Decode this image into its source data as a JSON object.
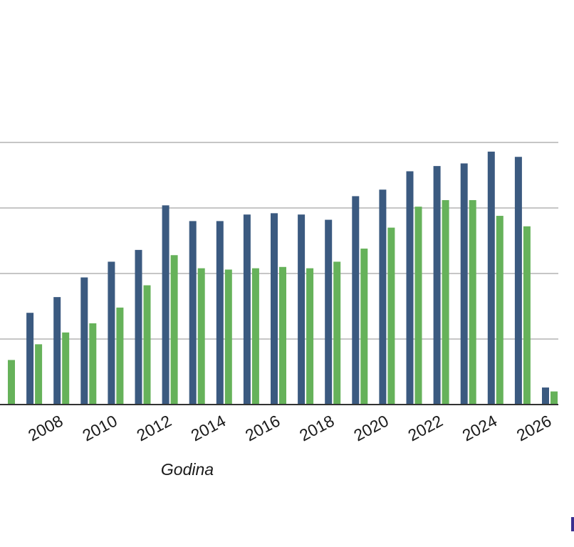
{
  "chart_data": {
    "type": "bar",
    "xlabel": "Godina",
    "ylabel": "",
    "title": "",
    "categories": [
      "2006",
      "2007",
      "2008",
      "2009",
      "2010",
      "2011",
      "2012",
      "2013",
      "2014",
      "2015",
      "2016",
      "2017",
      "2018",
      "2019",
      "2020",
      "2021",
      "2022",
      "2023",
      "2024",
      "2025",
      "2026"
    ],
    "tick_labels": [
      "2008",
      "2010",
      "2012",
      "2014",
      "2016",
      "2018",
      "2020",
      "2022",
      "2024",
      "2026"
    ],
    "series": [
      {
        "values": [
          null,
          140,
          164,
          194,
          218,
          236,
          304,
          280,
          280,
          290,
          292,
          290,
          282,
          318,
          328,
          356,
          364,
          368,
          386,
          378,
          26
        ]
      },
      {
        "values": [
          68,
          92,
          110,
          124,
          148,
          182,
          228,
          208,
          206,
          208,
          210,
          208,
          218,
          238,
          270,
          302,
          312,
          312,
          288,
          272,
          20
        ]
      }
    ],
    "ylim": [
      0,
      400
    ],
    "gridlines": [
      100,
      200,
      300,
      400
    ],
    "grid": true,
    "colors": {
      "series_0": "#3b5a80",
      "series_1": "#66b25a",
      "grid": "#c6c6c6",
      "axis": "#333333"
    }
  }
}
